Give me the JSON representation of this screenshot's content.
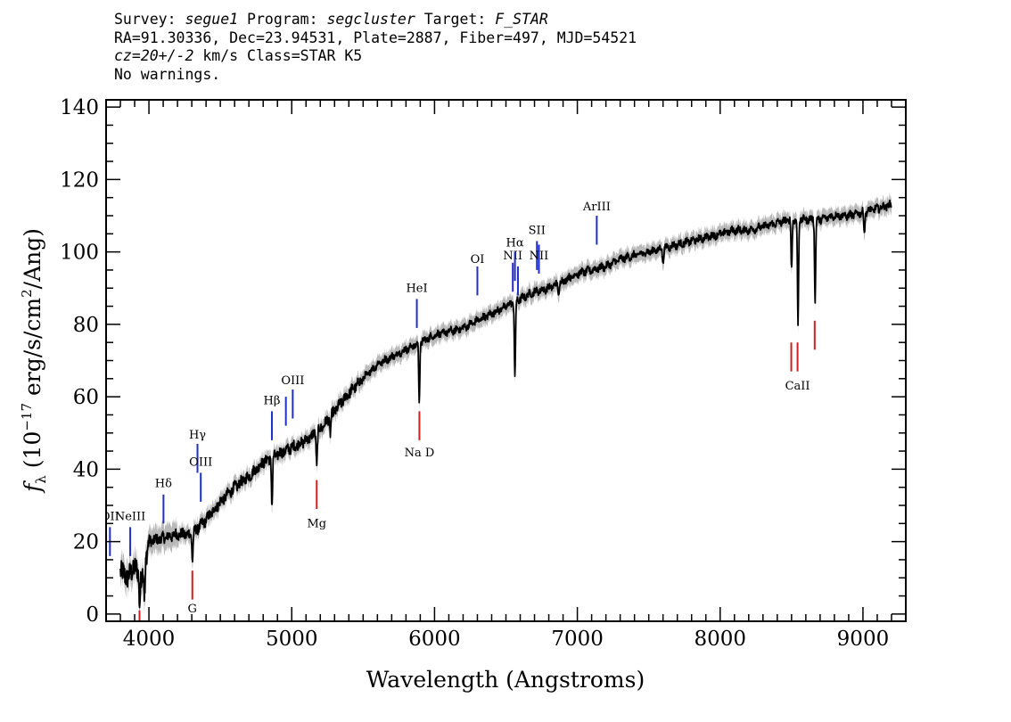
{
  "header": {
    "survey_label": "Survey:",
    "survey": "segue1",
    "program_label": "Program:",
    "program": "segcluster",
    "target_label": "Target:",
    "target": "F_STAR",
    "line2": "RA=91.30336, Dec=23.94531, Plate=2887, Fiber=497, MJD=54521",
    "cz_label": "cz=",
    "cz": "20+/-2",
    "cz_units": "km/s",
    "class_text": "Class=STAR K5",
    "warnings": "No warnings."
  },
  "chart_data": {
    "type": "line",
    "xlabel": "Wavelength (Angstroms)",
    "ylabel": "f_λ (10^-17 erg/s/cm^2/Ang)",
    "ylabel_parts": {
      "f": "f",
      "lambda": "λ",
      "pre": "(10",
      "exp1": "−17",
      "mid": " erg/s/cm",
      "exp2": "2",
      "post": "/Ang)"
    },
    "xlim": [
      3700,
      9300
    ],
    "ylim": [
      -2,
      142
    ],
    "x_ticks": [
      4000,
      5000,
      6000,
      7000,
      8000,
      9000
    ],
    "x_tick_labels": [
      "4000",
      "5000",
      "6000",
      "7000",
      "8000",
      "9000"
    ],
    "y_ticks": [
      0,
      20,
      40,
      60,
      80,
      100,
      120,
      140
    ],
    "y_tick_labels": [
      "0",
      "20",
      "40",
      "60",
      "80",
      "100",
      "120",
      "140"
    ],
    "spectrum_anchors": {
      "x": [
        3800,
        3850,
        3900,
        3950,
        4000,
        4100,
        4200,
        4300,
        4400,
        4500,
        4600,
        4700,
        4800,
        4900,
        5000,
        5100,
        5200,
        5300,
        5400,
        5500,
        5600,
        5700,
        5800,
        5900,
        6000,
        6100,
        6200,
        6300,
        6400,
        6500,
        6600,
        6700,
        6800,
        6900,
        7000,
        7100,
        7200,
        7300,
        7400,
        7500,
        7600,
        7700,
        7800,
        7900,
        8000,
        8100,
        8200,
        8300,
        8400,
        8500,
        8600,
        8700,
        8800,
        8900,
        9000,
        9100,
        9200
      ],
      "y": [
        12,
        10,
        13,
        10,
        20,
        21,
        22,
        22,
        26,
        31,
        35,
        38,
        42,
        44,
        46,
        48,
        51,
        56,
        61,
        65,
        69,
        71,
        73,
        75,
        77,
        78,
        79,
        81,
        83,
        85,
        87,
        89,
        90,
        92,
        94,
        95,
        96,
        98,
        99,
        100,
        101,
        102,
        103,
        104,
        105,
        106,
        106,
        107,
        108,
        109,
        109,
        109,
        110,
        110,
        111,
        112,
        113
      ]
    },
    "absorption_dips": [
      {
        "x": 3935,
        "y": 3
      },
      {
        "x": 3970,
        "y": 4
      },
      {
        "x": 4305,
        "y": 15
      },
      {
        "x": 4862,
        "y": 30
      },
      {
        "x": 5175,
        "y": 41
      },
      {
        "x": 5270,
        "y": 50
      },
      {
        "x": 5893,
        "y": 59
      },
      {
        "x": 6563,
        "y": 65
      },
      {
        "x": 6870,
        "y": 88
      },
      {
        "x": 7600,
        "y": 97
      },
      {
        "x": 8500,
        "y": 95
      },
      {
        "x": 8545,
        "y": 80
      },
      {
        "x": 8665,
        "y": 87
      },
      {
        "x": 9010,
        "y": 105
      }
    ],
    "emission_lines": [
      {
        "name": "OII",
        "x": 3727,
        "y_bottom": 16,
        "y_top": 24,
        "label": "OII",
        "label_y": 26
      },
      {
        "name": "NeIII",
        "x": 3869,
        "y_bottom": 16,
        "y_top": 24,
        "label": "NeIII",
        "label_y": 26
      },
      {
        "name": "Hdelta",
        "x": 4102,
        "y_bottom": 25,
        "y_top": 33,
        "label": "Hδ",
        "label_y": 35
      },
      {
        "name": "Hgamma",
        "x": 4340,
        "y_bottom": 39,
        "y_top": 47,
        "label": "Hγ",
        "label_y": 48.5
      },
      {
        "name": "OIII-4363",
        "x": 4363,
        "y_bottom": 31,
        "y_top": 39,
        "label": "OIII",
        "label_y": 41
      },
      {
        "name": "Hbeta",
        "x": 4861,
        "y_bottom": 48,
        "y_top": 56,
        "label": "Hβ",
        "label_y": 58
      },
      {
        "name": "OIII-4959",
        "x": 4959,
        "y_bottom": 52,
        "y_top": 60,
        "label": "",
        "label_y": 0
      },
      {
        "name": "OIII-5007",
        "x": 5007,
        "y_bottom": 54,
        "y_top": 62,
        "label": "OIII",
        "label_y": 63.5
      },
      {
        "name": "HeI",
        "x": 5876,
        "y_bottom": 79,
        "y_top": 87,
        "label": "HeI",
        "label_y": 89
      },
      {
        "name": "OI",
        "x": 6300,
        "y_bottom": 88,
        "y_top": 96,
        "label": "OI",
        "label_y": 97
      },
      {
        "name": "NII-6548",
        "x": 6548,
        "y_bottom": 89,
        "y_top": 97,
        "label": "NII",
        "label_y": 98
      },
      {
        "name": "Halpha",
        "x": 6563,
        "y_bottom": 92,
        "y_top": 100,
        "label": "Hα",
        "label_y": 101.5
      },
      {
        "name": "NII-6584",
        "x": 6584,
        "y_bottom": 88,
        "y_top": 96,
        "label": "",
        "label_y": 0
      },
      {
        "name": "SII-6717",
        "x": 6717,
        "y_bottom": 95,
        "y_top": 103,
        "label": "SII",
        "label_y": 105
      },
      {
        "name": "SII-6731",
        "x": 6731,
        "y_bottom": 94,
        "y_top": 102,
        "label": "NII",
        "label_y": 98
      },
      {
        "name": "ArIII",
        "x": 7136,
        "y_bottom": 102,
        "y_top": 110,
        "label": "ArIII",
        "label_y": 111.5
      }
    ],
    "absorption_lines": [
      {
        "name": "CaK",
        "x": 3934,
        "y_bottom": -2,
        "y_top": 1,
        "label": "",
        "label_y": 0
      },
      {
        "name": "G-band",
        "x": 4304,
        "y_bottom": 4,
        "y_top": 12,
        "label": "G",
        "label_y": 0.5
      },
      {
        "name": "Mg",
        "x": 5175,
        "y_bottom": 29,
        "y_top": 37,
        "label": "Mg",
        "label_y": 24
      },
      {
        "name": "Na-D",
        "x": 5894,
        "y_bottom": 48,
        "y_top": 56,
        "label": "Na D",
        "label_y": 43.5
      },
      {
        "name": "CaII-8498",
        "x": 8498,
        "y_bottom": 67,
        "y_top": 75,
        "label": "",
        "label_y": 0
      },
      {
        "name": "CaII-8542",
        "x": 8542,
        "y_bottom": 67,
        "y_top": 75,
        "label": "CaII",
        "label_y": 62
      },
      {
        "name": "CaII-8662",
        "x": 8662,
        "y_bottom": 73,
        "y_top": 81,
        "label": "",
        "label_y": 0
      }
    ],
    "colors": {
      "spectrum": "#000000",
      "error": "#b8b8b8",
      "emission": "#1f2fc8",
      "absorption": "#d01f1f"
    }
  }
}
